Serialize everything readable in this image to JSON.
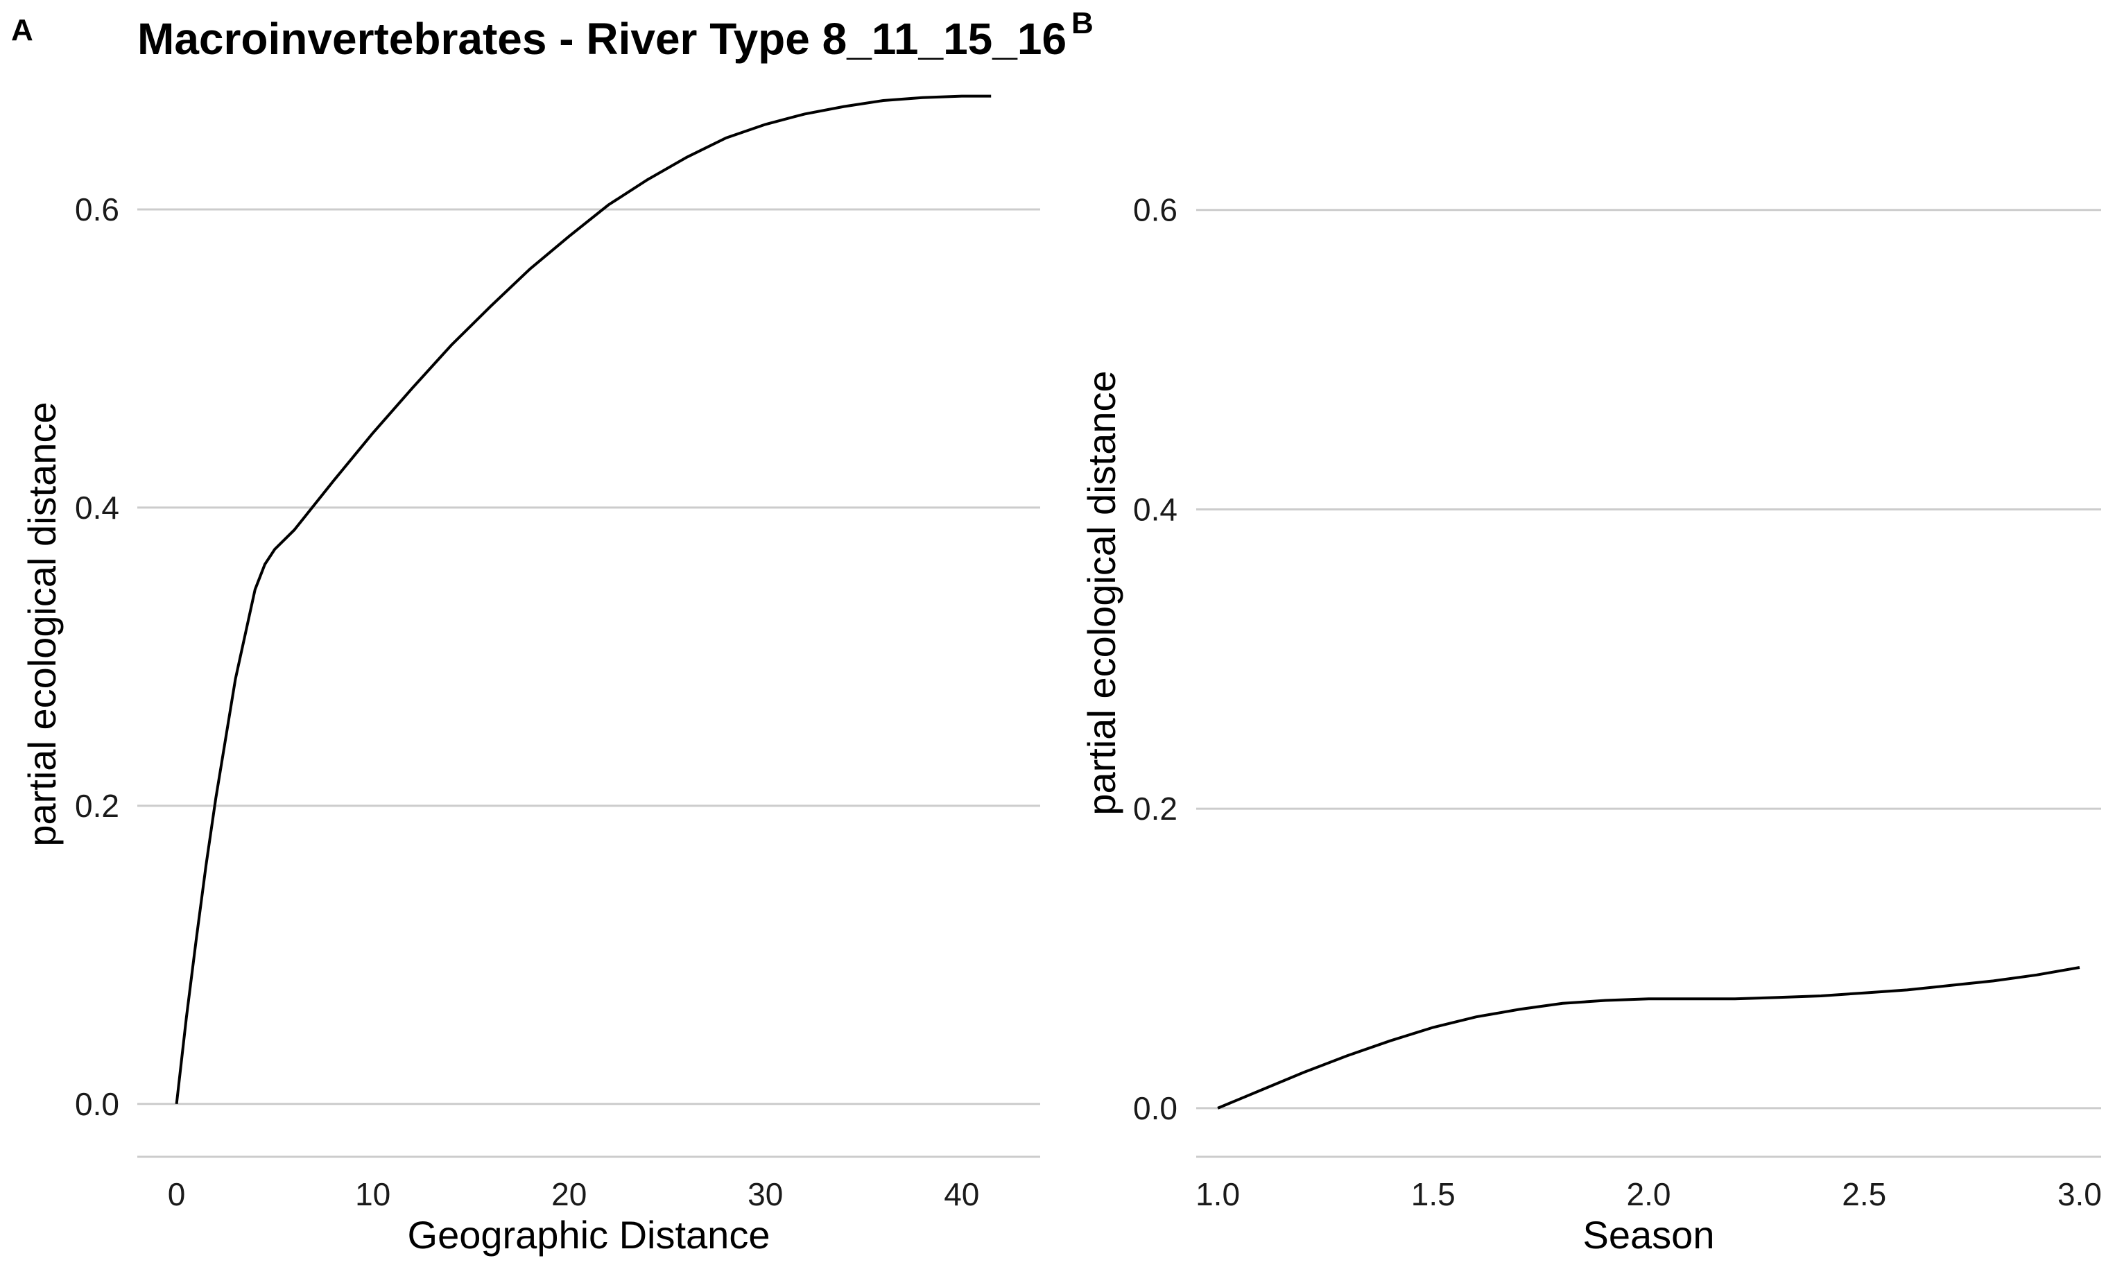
{
  "figure": {
    "title": "Macroinvertebrates - River Type 8_11_15_16",
    "line_color": "#000000",
    "grid_color": "#cccccc"
  },
  "chart_data": [
    {
      "panel": "A",
      "type": "line",
      "xlabel": "Geographic Distance",
      "ylabel": "partial ecological distance",
      "xlim": [
        -2,
        44
      ],
      "ylim": [
        -0.035,
        0.68
      ],
      "xticks": [
        0,
        10,
        20,
        30,
        40
      ],
      "xtick_labels": [
        "0",
        "10",
        "20",
        "30",
        "40"
      ],
      "yticks": [
        0.0,
        0.2,
        0.4,
        0.6
      ],
      "ytick_labels": [
        "0.0",
        "0.2",
        "0.4",
        "0.6"
      ],
      "grid": "horizontal",
      "series": [
        {
          "x": [
            0,
            0.5,
            1,
            1.5,
            2,
            3,
            4,
            4.5,
            5,
            6,
            8,
            10,
            12,
            14,
            16,
            18,
            20,
            22,
            24,
            26,
            28,
            30,
            32,
            34,
            36,
            38,
            40,
            41.5
          ],
          "y": [
            0.0,
            0.058,
            0.11,
            0.16,
            0.205,
            0.285,
            0.345,
            0.362,
            0.372,
            0.385,
            0.418,
            0.45,
            0.48,
            0.509,
            0.535,
            0.56,
            0.582,
            0.603,
            0.62,
            0.635,
            0.648,
            0.657,
            0.664,
            0.669,
            0.673,
            0.675,
            0.676,
            0.676
          ]
        }
      ]
    },
    {
      "panel": "B",
      "type": "line",
      "xlabel": "Season",
      "ylabel": "partial ecological distance",
      "xlim": [
        0.95,
        3.05
      ],
      "ylim": [
        -0.032,
        0.68
      ],
      "xticks": [
        1.0,
        1.5,
        2.0,
        2.5,
        3.0
      ],
      "xtick_labels": [
        "1.0",
        "1.5",
        "2.0",
        "2.5",
        "3.0"
      ],
      "yticks": [
        0.0,
        0.2,
        0.4,
        0.6
      ],
      "ytick_labels": [
        "0.0",
        "0.2",
        "0.4",
        "0.6"
      ],
      "grid": "horizontal",
      "series": [
        {
          "x": [
            1.0,
            1.1,
            1.2,
            1.3,
            1.4,
            1.5,
            1.6,
            1.7,
            1.8,
            1.9,
            2.0,
            2.1,
            2.2,
            2.3,
            2.4,
            2.5,
            2.6,
            2.7,
            2.8,
            2.9,
            3.0
          ],
          "y": [
            0.0,
            0.012,
            0.024,
            0.035,
            0.045,
            0.054,
            0.061,
            0.066,
            0.07,
            0.072,
            0.073,
            0.073,
            0.073,
            0.074,
            0.075,
            0.077,
            0.079,
            0.082,
            0.085,
            0.089,
            0.094
          ]
        }
      ]
    }
  ]
}
